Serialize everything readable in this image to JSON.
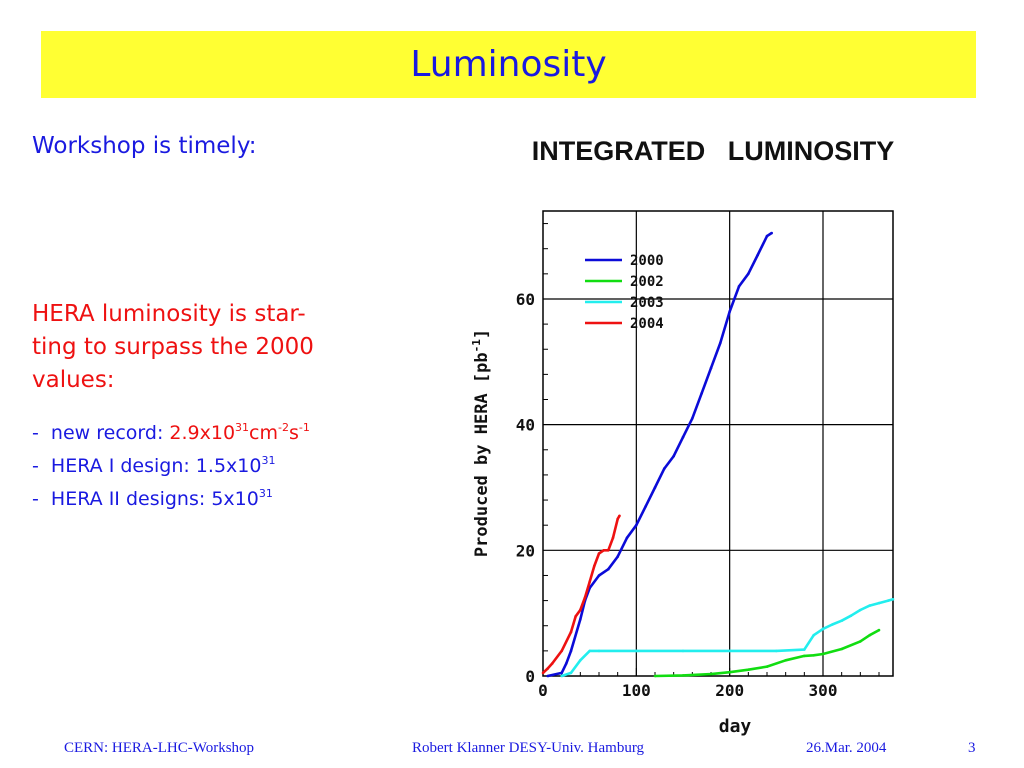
{
  "slide": {
    "title": "Luminosity",
    "text_timely": "Workshop is timely:",
    "text_hera_line1": "HERA luminosity is star-",
    "text_hera_line2": "ting to surpass the 2000",
    "text_hera_line3": "values:",
    "bullets": {
      "b1_prefix": "-  new record: ",
      "b1_value": "2.9x10",
      "b1_exp1": "31",
      "b1_unit_cm": "cm",
      "b1_exp2": "-2",
      "b1_unit_s": "s",
      "b1_exp3": "-1",
      "b2_prefix": "-  HERA I design: 1.5x10",
      "b2_exp": "31",
      "b3_prefix": "-  HERA II designs: 5x10",
      "b3_exp": "31"
    }
  },
  "footer": {
    "left": "CERN: HERA-LHC-Workshop",
    "center": "Robert Klanner DESY-Univ. Hamburg",
    "date": "26.Mar. 2004",
    "page": "3"
  },
  "colors": {
    "title_bg": "#ffff33",
    "text_blue": "#1a1ae0",
    "text_red": "#ee1111"
  },
  "chart_data": {
    "type": "line",
    "title": "INTEGRATED   LUMINOSITY",
    "xlabel": "day",
    "ylabel": "Produced by HERA [pb",
    "ylabel_sup": "-1",
    "ylabel_close": "]",
    "xlim": [
      0,
      375
    ],
    "ylim": [
      0,
      74
    ],
    "xticks": [
      0,
      100,
      200,
      300
    ],
    "yticks": [
      0,
      20,
      40,
      60
    ],
    "grid": true,
    "legend_position": "top-left",
    "series": [
      {
        "name": "2000",
        "color": "#0b0bd8",
        "x": [
          5,
          20,
          25,
          30,
          40,
          45,
          50,
          60,
          70,
          80,
          90,
          100,
          110,
          120,
          130,
          140,
          150,
          160,
          170,
          180,
          190,
          200,
          210,
          220,
          230,
          240,
          245
        ],
        "y": [
          0,
          0.5,
          2,
          4,
          9,
          12,
          14,
          16,
          17,
          19,
          22,
          24,
          27,
          30,
          33,
          35,
          38,
          41,
          45,
          49,
          53,
          58,
          62,
          64,
          67,
          70,
          70.5
        ]
      },
      {
        "name": "2002",
        "color": "#11dd11",
        "x": [
          120,
          150,
          180,
          200,
          220,
          240,
          260,
          280,
          290,
          300,
          320,
          340,
          350,
          360
        ],
        "y": [
          0,
          0.1,
          0.3,
          0.6,
          1,
          1.5,
          2.5,
          3.2,
          3.3,
          3.5,
          4.3,
          5.5,
          6.5,
          7.3
        ]
      },
      {
        "name": "2003",
        "color": "#22eeee",
        "x": [
          20,
          30,
          40,
          50,
          60,
          100,
          150,
          200,
          250,
          280,
          290,
          300,
          310,
          320,
          330,
          340,
          350,
          360,
          370,
          375
        ],
        "y": [
          0,
          0.5,
          2.5,
          4,
          4,
          4,
          4,
          4,
          4,
          4.2,
          6.5,
          7.5,
          8.2,
          8.8,
          9.6,
          10.5,
          11.2,
          11.6,
          12,
          12.2
        ]
      },
      {
        "name": "2004",
        "color": "#ee1111",
        "x": [
          0,
          5,
          10,
          20,
          30,
          35,
          40,
          45,
          50,
          55,
          60,
          65,
          70,
          75,
          80,
          82
        ],
        "y": [
          0.5,
          1.2,
          2,
          4,
          7,
          9.5,
          10.5,
          12.5,
          15,
          17.5,
          19.5,
          20,
          20,
          22,
          25,
          25.5
        ]
      }
    ]
  }
}
